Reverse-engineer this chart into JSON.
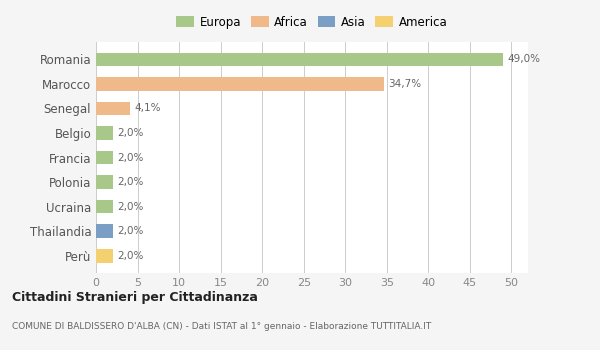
{
  "countries": [
    "Romania",
    "Marocco",
    "Senegal",
    "Belgio",
    "Francia",
    "Polonia",
    "Ucraina",
    "Thailandia",
    "Perù"
  ],
  "values": [
    49.0,
    34.7,
    4.1,
    2.0,
    2.0,
    2.0,
    2.0,
    2.0,
    2.0
  ],
  "labels": [
    "49,0%",
    "34,7%",
    "4,1%",
    "2,0%",
    "2,0%",
    "2,0%",
    "2,0%",
    "2,0%",
    "2,0%"
  ],
  "colors": [
    "#a8c88a",
    "#f0b98a",
    "#f0b98a",
    "#a8c88a",
    "#a8c88a",
    "#a8c88a",
    "#a8c88a",
    "#7a9ec4",
    "#f5d070"
  ],
  "legend": {
    "labels": [
      "Europa",
      "Africa",
      "Asia",
      "America"
    ],
    "colors": [
      "#a8c88a",
      "#f0b98a",
      "#7a9ec4",
      "#f5d070"
    ]
  },
  "xlim": [
    0,
    52
  ],
  "xticks": [
    0,
    5,
    10,
    15,
    20,
    25,
    30,
    35,
    40,
    45,
    50
  ],
  "title": "Cittadini Stranieri per Cittadinanza",
  "subtitle": "COMUNE DI BALDISSERO D'ALBA (CN) - Dati ISTAT al 1° gennaio - Elaborazione TUTTITALIA.IT",
  "background_color": "#f5f5f5",
  "plot_bg_color": "#ffffff",
  "grid_color": "#cccccc",
  "label_color": "#888888",
  "value_label_color": "#666666"
}
